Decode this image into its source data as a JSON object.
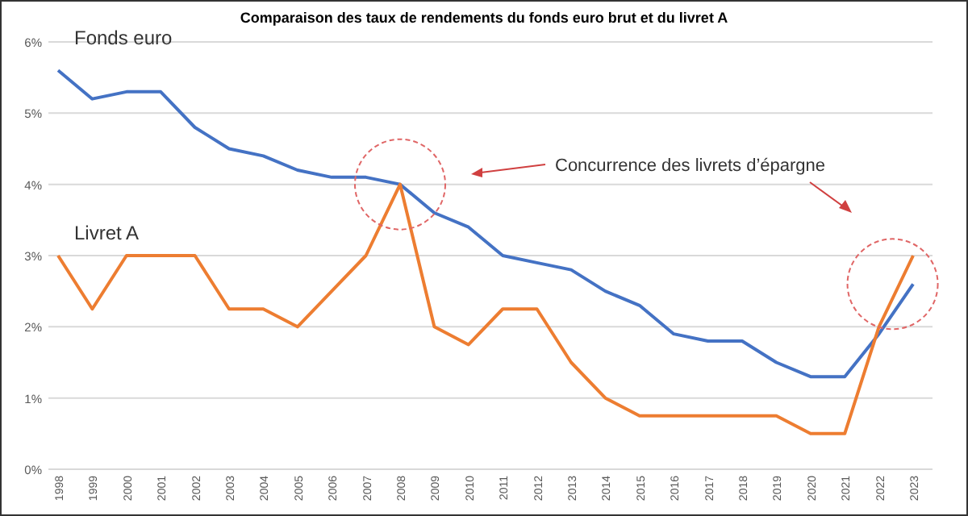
{
  "chart_data": {
    "type": "line",
    "title": "Comparaison des taux de rendements du fonds euro brut et du livret A",
    "categories": [
      "1998",
      "1999",
      "2000",
      "2001",
      "2002",
      "2003",
      "2004",
      "2005",
      "2006",
      "2007",
      "2008",
      "2009",
      "2010",
      "2011",
      "2012",
      "2013",
      "2014",
      "2015",
      "2016",
      "2017",
      "2018",
      "2019",
      "2020",
      "2021",
      "2022",
      "2023"
    ],
    "series": [
      {
        "name": "Fonds euro",
        "color": "#4472c4",
        "values": [
          5.6,
          5.2,
          5.3,
          5.3,
          4.8,
          4.5,
          4.4,
          4.2,
          4.1,
          4.1,
          4.0,
          3.6,
          3.4,
          3.0,
          2.9,
          2.8,
          2.5,
          2.3,
          1.9,
          1.8,
          1.8,
          1.5,
          1.3,
          1.3,
          1.9,
          2.6
        ]
      },
      {
        "name": "Livret A",
        "color": "#ed7d31",
        "values": [
          3,
          2.25,
          3,
          3,
          3,
          2.25,
          2.25,
          2,
          2.5,
          3,
          4,
          2,
          1.75,
          2.25,
          2.25,
          1.5,
          1,
          0.75,
          0.75,
          0.75,
          0.75,
          0.75,
          0.5,
          0.5,
          2,
          3
        ]
      }
    ],
    "ylim": [
      0,
      6
    ],
    "yticks": [
      {
        "value": 0,
        "label": "0%"
      },
      {
        "value": 1,
        "label": "1%"
      },
      {
        "value": 2,
        "label": "2%"
      },
      {
        "value": 3,
        "label": "3%"
      },
      {
        "value": 4,
        "label": "4%"
      },
      {
        "value": 5,
        "label": "5%"
      },
      {
        "value": 6,
        "label": "6%"
      }
    ],
    "grid": "y",
    "marker": "none",
    "line_style": "solid",
    "annotations": [
      "Concurrence des livrets d’épargne"
    ]
  }
}
